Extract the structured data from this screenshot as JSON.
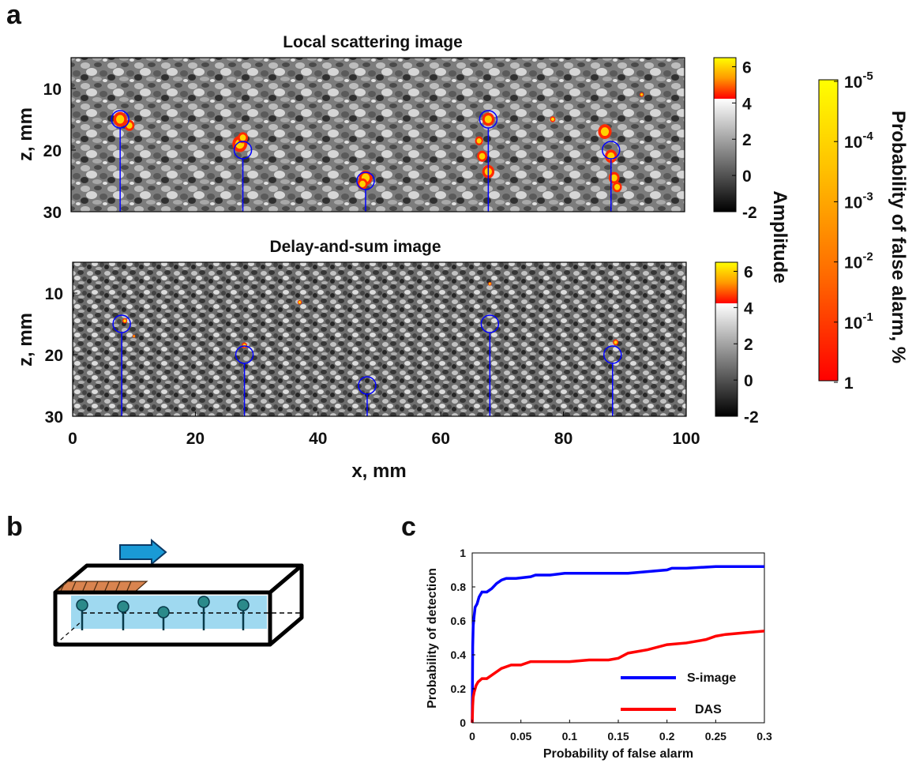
{
  "panels": {
    "a": "a",
    "b": "b",
    "c": "c"
  },
  "chart_data": [
    {
      "type": "heatmap",
      "panel": "a",
      "title": "Local scattering image",
      "ylabel": "z, mm",
      "xlim": [
        0,
        100
      ],
      "ylim": [
        30,
        5
      ],
      "y_ticks": [
        "10",
        "20",
        "30"
      ],
      "x_ticks": [],
      "grid": false,
      "defect_markers": [
        {
          "x": 8,
          "z": 15
        },
        {
          "x": 28,
          "z": 20
        },
        {
          "x": 48,
          "z": 25
        },
        {
          "x": 68,
          "z": 15
        },
        {
          "x": 88,
          "z": 20
        }
      ],
      "colorbar": {
        "label": "Amplitude",
        "ticks": [
          "6",
          "4",
          "2",
          "0",
          "-2"
        ],
        "range": [
          -2,
          6.5
        ],
        "threshold": 4.5
      }
    },
    {
      "type": "heatmap",
      "panel": "a",
      "title": "Delay-and-sum image",
      "xlabel": "x, mm",
      "ylabel": "z, mm",
      "xlim": [
        0,
        100
      ],
      "ylim": [
        30,
        5
      ],
      "x_ticks": [
        "0",
        "20",
        "40",
        "60",
        "80",
        "100"
      ],
      "y_ticks": [
        "10",
        "20",
        "30"
      ],
      "grid": false,
      "defect_markers": [
        {
          "x": 8,
          "z": 15
        },
        {
          "x": 28,
          "z": 20
        },
        {
          "x": 48,
          "z": 25
        },
        {
          "x": 68,
          "z": 15
        },
        {
          "x": 88,
          "z": 20
        }
      ],
      "colorbar": {
        "ticks": [
          "6",
          "4",
          "2",
          "0",
          "-2"
        ],
        "range": [
          -2,
          6.5
        ],
        "threshold": 4.5
      }
    },
    {
      "type": "colorbar",
      "panel": "a",
      "label": "Probability of false alarm, %",
      "ticks": [
        {
          "base": "10",
          "exp": "-5"
        },
        {
          "base": "10",
          "exp": "-4"
        },
        {
          "base": "10",
          "exp": "-3"
        },
        {
          "base": "10",
          "exp": "-2"
        },
        {
          "base": "10",
          "exp": "-1"
        },
        {
          "base": "1",
          "exp": ""
        }
      ],
      "colors": [
        "#ffff00",
        "#ffc000",
        "#ff8000",
        "#ff0000"
      ]
    },
    {
      "type": "line",
      "panel": "c",
      "xlabel": "Probability of false alarm",
      "ylabel": "Probability of detection",
      "xlim": [
        0,
        0.3
      ],
      "ylim": [
        0,
        1
      ],
      "x_ticks": [
        "0",
        "0.05",
        "0.1",
        "0.15",
        "0.2",
        "0.25",
        "0.3"
      ],
      "y_ticks": [
        "0",
        "0.2",
        "0.4",
        "0.6",
        "0.8",
        "1"
      ],
      "grid": false,
      "legend_position": "bottom-right",
      "series": [
        {
          "name": "S-image",
          "color": "#0000ff",
          "x": [
            0,
            0.0005,
            0.001,
            0.002,
            0.003,
            0.005,
            0.007,
            0.008,
            0.01,
            0.012,
            0.015,
            0.02,
            0.025,
            0.03,
            0.035,
            0.045,
            0.06,
            0.065,
            0.08,
            0.095,
            0.1,
            0.12,
            0.14,
            0.16,
            0.18,
            0.2,
            0.205,
            0.22,
            0.25,
            0.27,
            0.3
          ],
          "y": [
            0,
            0.45,
            0.57,
            0.63,
            0.68,
            0.7,
            0.74,
            0.75,
            0.77,
            0.77,
            0.77,
            0.79,
            0.82,
            0.84,
            0.85,
            0.85,
            0.86,
            0.87,
            0.87,
            0.88,
            0.88,
            0.88,
            0.88,
            0.88,
            0.89,
            0.9,
            0.91,
            0.91,
            0.92,
            0.92,
            0.92
          ]
        },
        {
          "name": "DAS",
          "color": "#ff0000",
          "x": [
            0,
            0.0005,
            0.001,
            0.002,
            0.004,
            0.006,
            0.01,
            0.015,
            0.02,
            0.03,
            0.04,
            0.05,
            0.06,
            0.08,
            0.1,
            0.12,
            0.14,
            0.15,
            0.16,
            0.18,
            0.2,
            0.22,
            0.24,
            0.25,
            0.26,
            0.28,
            0.3
          ],
          "y": [
            0,
            0.1,
            0.15,
            0.18,
            0.22,
            0.24,
            0.26,
            0.26,
            0.28,
            0.32,
            0.34,
            0.34,
            0.36,
            0.36,
            0.36,
            0.37,
            0.37,
            0.38,
            0.41,
            0.43,
            0.46,
            0.47,
            0.49,
            0.51,
            0.52,
            0.53,
            0.54
          ]
        }
      ]
    }
  ]
}
